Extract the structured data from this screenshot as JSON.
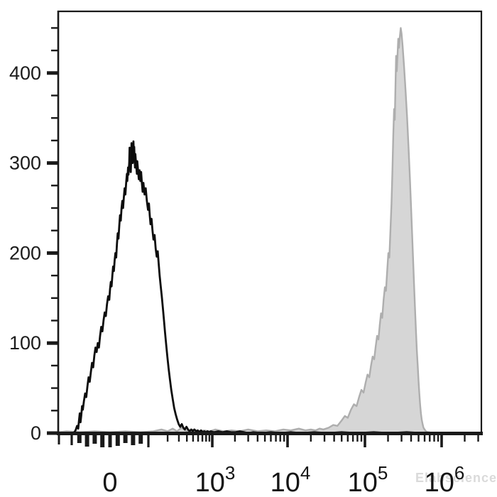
{
  "watermark": {
    "text": "Elabscience",
    "mark": "®"
  },
  "colors": {
    "axis": "#1a1a1a",
    "background": "#ffffff",
    "black_series_line": "#0d0d0d",
    "gray_series_fill": "#d6d6d6",
    "gray_series_line": "#aeaeae"
  },
  "chart_data": {
    "type": "histogram",
    "subtype": "flow-cytometry-overlay",
    "title": "",
    "xlabel": "",
    "ylabel": "",
    "grid": false,
    "legend": "none",
    "x_scale": {
      "type": "biexponential",
      "linear_zone": [
        -100,
        100
      ],
      "xlim_values": [
        -160,
        2900000
      ]
    },
    "ylim": [
      0,
      469
    ],
    "y_major_ticks": [
      {
        "value": 0,
        "label": "0"
      },
      {
        "value": 100,
        "label": "100"
      },
      {
        "value": 200,
        "label": "200"
      },
      {
        "value": 300,
        "label": "300"
      },
      {
        "value": 400,
        "label": "400"
      }
    ],
    "y_minor_step": 25,
    "y_minor_max": 450,
    "x_major_ticks": [
      {
        "value": 0,
        "label": "0"
      },
      {
        "value": 1000,
        "base": "10",
        "exp": "3"
      },
      {
        "value": 10000,
        "base": "10",
        "exp": "4"
      },
      {
        "value": 100000,
        "base": "10",
        "exp": "5"
      },
      {
        "value": 1000000,
        "base": "10",
        "exp": "6"
      }
    ],
    "x_unlabeled_major_ticks": [
      100
    ],
    "x_linear_minor_ticks": [
      -100,
      -80,
      -60,
      -40,
      -20,
      0,
      20,
      40,
      60,
      80
    ],
    "x_log_minor_decades": [
      2,
      3,
      4,
      5,
      6
    ],
    "series": [
      {
        "name": "black-open-histogram",
        "style": "open",
        "peak_count": 324,
        "peak_value": 60,
        "points": [
          [
            -162,
            0
          ],
          [
            -110,
            0
          ],
          [
            -95,
            0
          ],
          [
            -90,
            3
          ],
          [
            -86,
            8
          ],
          [
            -83,
            5
          ],
          [
            -81,
            14
          ],
          [
            -79,
            22
          ],
          [
            -77,
            12
          ],
          [
            -75,
            20
          ],
          [
            -73,
            30
          ],
          [
            -71,
            26
          ],
          [
            -68,
            36
          ],
          [
            -65,
            44
          ],
          [
            -62,
            40
          ],
          [
            -59,
            52
          ],
          [
            -56,
            62
          ],
          [
            -53,
            57
          ],
          [
            -50,
            68
          ],
          [
            -47,
            78
          ],
          [
            -44,
            73
          ],
          [
            -41,
            86
          ],
          [
            -38,
            95
          ],
          [
            -35,
            90
          ],
          [
            -32,
            100
          ],
          [
            -29,
            95
          ],
          [
            -26,
            108
          ],
          [
            -23,
            118
          ],
          [
            -20,
            113
          ],
          [
            -17,
            125
          ],
          [
            -14,
            134
          ],
          [
            -11,
            130
          ],
          [
            -8,
            143
          ],
          [
            -5,
            152
          ],
          [
            -2,
            148
          ],
          [
            0,
            160
          ],
          [
            2,
            168
          ],
          [
            4,
            163
          ],
          [
            6,
            175
          ],
          [
            8,
            185
          ],
          [
            10,
            180
          ],
          [
            12,
            192
          ],
          [
            14,
            200
          ],
          [
            16,
            195
          ],
          [
            18,
            210
          ],
          [
            20,
            222
          ],
          [
            22,
            216
          ],
          [
            24,
            230
          ],
          [
            26,
            242
          ],
          [
            28,
            236
          ],
          [
            30,
            250
          ],
          [
            32,
            258
          ],
          [
            34,
            250
          ],
          [
            36,
            262
          ],
          [
            38,
            272
          ],
          [
            40,
            265
          ],
          [
            42,
            278
          ],
          [
            44,
            288
          ],
          [
            45,
            280
          ],
          [
            47,
            295
          ],
          [
            48,
            287
          ],
          [
            50,
            300
          ],
          [
            51,
            317
          ],
          [
            52,
            295
          ],
          [
            53,
            308
          ],
          [
            54,
            290
          ],
          [
            55,
            302
          ],
          [
            56,
            322
          ],
          [
            57,
            310
          ],
          [
            58,
            318
          ],
          [
            59,
            300
          ],
          [
            60,
            310
          ],
          [
            61,
            324
          ],
          [
            62,
            312
          ],
          [
            63,
            318
          ],
          [
            64,
            305
          ],
          [
            65,
            295
          ],
          [
            66,
            310
          ],
          [
            68,
            298
          ],
          [
            70,
            288
          ],
          [
            71,
            302
          ],
          [
            73,
            292
          ],
          [
            75,
            282
          ],
          [
            77,
            292
          ],
          [
            79,
            280
          ],
          [
            81,
            290
          ],
          [
            83,
            278
          ],
          [
            85,
            268
          ],
          [
            87,
            278
          ],
          [
            90,
            265
          ],
          [
            93,
            272
          ],
          [
            96,
            258
          ],
          [
            99,
            248
          ],
          [
            102,
            255
          ],
          [
            105,
            242
          ],
          [
            108,
            232
          ],
          [
            112,
            238
          ],
          [
            116,
            225
          ],
          [
            120,
            215
          ],
          [
            125,
            220
          ],
          [
            130,
            205
          ],
          [
            135,
            196
          ],
          [
            140,
            202
          ],
          [
            145,
            188
          ],
          [
            150,
            175
          ],
          [
            156,
            163
          ],
          [
            162,
            152
          ],
          [
            168,
            140
          ],
          [
            175,
            126
          ],
          [
            182,
            112
          ],
          [
            190,
            98
          ],
          [
            198,
            85
          ],
          [
            207,
            72
          ],
          [
            217,
            60
          ],
          [
            228,
            48
          ],
          [
            240,
            38
          ],
          [
            253,
            28
          ],
          [
            267,
            21
          ],
          [
            282,
            15
          ],
          [
            298,
            10
          ],
          [
            315,
            7
          ],
          [
            333,
            10
          ],
          [
            352,
            6
          ],
          [
            372,
            4
          ],
          [
            394,
            7
          ],
          [
            417,
            4
          ],
          [
            442,
            2
          ],
          [
            468,
            4
          ],
          [
            496,
            2
          ],
          [
            526,
            4
          ],
          [
            558,
            2
          ],
          [
            592,
            3
          ],
          [
            628,
            1
          ],
          [
            666,
            3
          ],
          [
            706,
            1
          ],
          [
            749,
            2
          ],
          [
            795,
            1
          ],
          [
            843,
            2
          ],
          [
            894,
            1
          ],
          [
            948,
            2
          ],
          [
            1050,
            1
          ],
          [
            1200,
            2
          ],
          [
            1370,
            1
          ],
          [
            1560,
            2
          ],
          [
            1780,
            1
          ],
          [
            2030,
            1
          ],
          [
            2320,
            2
          ],
          [
            2650,
            1
          ],
          [
            3000,
            0
          ],
          [
            3500,
            1
          ],
          [
            4500,
            0
          ],
          [
            6000,
            1
          ],
          [
            8000,
            0
          ],
          [
            11000,
            1
          ],
          [
            15000,
            0
          ],
          [
            22000,
            1
          ],
          [
            33000,
            0
          ],
          [
            50000,
            1
          ],
          [
            80000,
            0
          ],
          [
            130000,
            1
          ],
          [
            210000,
            0
          ],
          [
            350000,
            1
          ],
          [
            560000,
            0
          ],
          [
            660000,
            0
          ]
        ]
      },
      {
        "name": "gray-filled-histogram",
        "style": "filled",
        "peak_count": 450,
        "peak_value": 293000,
        "points": [
          [
            -162,
            1
          ],
          [
            -120,
            2
          ],
          [
            -80,
            1
          ],
          [
            -40,
            2
          ],
          [
            0,
            1
          ],
          [
            40,
            2
          ],
          [
            80,
            1
          ],
          [
            120,
            2
          ],
          [
            160,
            4
          ],
          [
            200,
            2
          ],
          [
            240,
            5
          ],
          [
            280,
            2
          ],
          [
            330,
            6
          ],
          [
            380,
            3
          ],
          [
            430,
            2
          ],
          [
            500,
            4
          ],
          [
            600,
            2
          ],
          [
            750,
            3
          ],
          [
            900,
            2
          ],
          [
            1100,
            4
          ],
          [
            1400,
            2
          ],
          [
            1800,
            3
          ],
          [
            2300,
            2
          ],
          [
            3000,
            4
          ],
          [
            4000,
            2
          ],
          [
            5200,
            3
          ],
          [
            6800,
            2
          ],
          [
            8800,
            4
          ],
          [
            11000,
            3
          ],
          [
            14000,
            5
          ],
          [
            17000,
            3
          ],
          [
            20000,
            4
          ],
          [
            23000,
            3
          ],
          [
            26000,
            5
          ],
          [
            29000,
            4
          ],
          [
            34000,
            6
          ],
          [
            39000,
            9
          ],
          [
            44000,
            8
          ],
          [
            50000,
            14
          ],
          [
            55000,
            19
          ],
          [
            60000,
            17
          ],
          [
            66000,
            26
          ],
          [
            72000,
            32
          ],
          [
            78000,
            30
          ],
          [
            84000,
            40
          ],
          [
            90000,
            48
          ],
          [
            96000,
            45
          ],
          [
            102000,
            56
          ],
          [
            108000,
            65
          ],
          [
            114000,
            62
          ],
          [
            120000,
            75
          ],
          [
            126000,
            85
          ],
          [
            132000,
            82
          ],
          [
            138000,
            96
          ],
          [
            144000,
            108
          ],
          [
            150000,
            104
          ],
          [
            156000,
            120
          ],
          [
            162000,
            133
          ],
          [
            168000,
            128
          ],
          [
            175000,
            148
          ],
          [
            182000,
            162
          ],
          [
            188000,
            158
          ],
          [
            195000,
            180
          ],
          [
            202000,
            200
          ],
          [
            208000,
            195
          ],
          [
            215000,
            225
          ],
          [
            222000,
            255
          ],
          [
            228000,
            290
          ],
          [
            234000,
            330
          ],
          [
            240000,
            360
          ],
          [
            245000,
            348
          ],
          [
            250000,
            385
          ],
          [
            255000,
            419
          ],
          [
            260000,
            402
          ],
          [
            266000,
            420
          ],
          [
            272000,
            438
          ],
          [
            278000,
            428
          ],
          [
            285000,
            440
          ],
          [
            293000,
            450
          ],
          [
            300000,
            444
          ],
          [
            310000,
            430
          ],
          [
            325000,
            405
          ],
          [
            340000,
            378
          ],
          [
            355000,
            350
          ],
          [
            370000,
            318
          ],
          [
            385000,
            285
          ],
          [
            400000,
            250
          ],
          [
            412000,
            222
          ],
          [
            425000,
            192
          ],
          [
            437000,
            165
          ],
          [
            450000,
            138
          ],
          [
            462000,
            115
          ],
          [
            475000,
            92
          ],
          [
            488000,
            75
          ],
          [
            500000,
            58
          ],
          [
            512000,
            44
          ],
          [
            524000,
            32
          ],
          [
            537000,
            22
          ],
          [
            550000,
            15
          ],
          [
            565000,
            10
          ],
          [
            580000,
            6
          ],
          [
            600000,
            4
          ],
          [
            625000,
            2
          ],
          [
            660000,
            1
          ],
          [
            700000,
            1
          ]
        ]
      }
    ]
  }
}
